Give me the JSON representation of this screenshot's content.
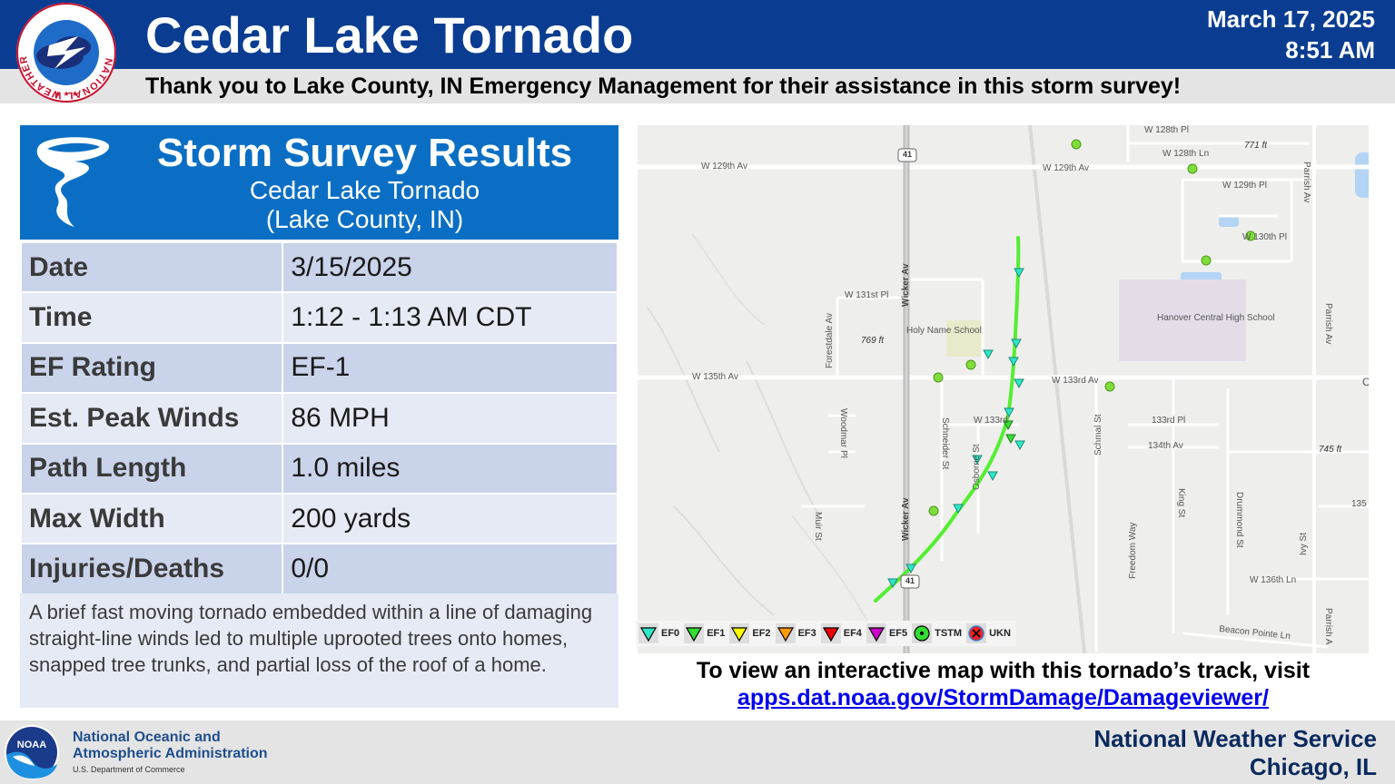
{
  "header": {
    "title": "Cedar Lake Tornado",
    "date": "March 17, 2025",
    "time": "8:51 AM",
    "thanks": "Thank you to Lake County, IN Emergency Management for their assistance in this storm survey!",
    "logo_text": "NATIONAL WEATHER SERVICE"
  },
  "survey": {
    "title": "Storm Survey Results",
    "subtitle_line1": "Cedar Lake Tornado",
    "subtitle_line2": "(Lake County, IN)",
    "rows": [
      {
        "label": "Date",
        "value": "3/15/2025"
      },
      {
        "label": "Time",
        "value": "1:12 - 1:13 AM CDT"
      },
      {
        "label": "EF Rating",
        "value": "EF-1"
      },
      {
        "label": "Est. Peak Winds",
        "value": "86 MPH"
      },
      {
        "label": "Path Length",
        "value": "1.0 miles"
      },
      {
        "label": "Max Width",
        "value": "200 yards"
      },
      {
        "label": "Injuries/Deaths",
        "value": "0/0"
      }
    ],
    "summary": "A brief fast moving tornado embedded within a line of damaging straight-line winds led to multiple uprooted trees onto homes, snapped tree trunks, and partial loss of the roof of a home."
  },
  "map": {
    "labels": {
      "w128th_pl": "W 128th Pl",
      "w128th_ln": "W 128th Ln",
      "elev771": "771 ft",
      "w129th_av_west": "W 129th Av",
      "w129th_av_mid": "W 129th Av",
      "w129th_pl": "W 129th Pl",
      "w130th_pl": "W 130th Pl",
      "parrish_av_n": "Parrish Av",
      "wicker_av_n": "Wicker Av",
      "w131st_pl": "W 131st Pl",
      "forestdale_av": "Forestdale Av",
      "holy_name": "Holy Name School",
      "hanover": "Hanover Central High School",
      "elev769": "769 ft",
      "w135th_av": "W 135th Av",
      "w133rd_av": "W 133rd Av",
      "woodmar_pl": "Woodmar Pl",
      "schneider_st": "Schneider St",
      "w133rd": "W 133rd",
      "osborne_st": "Osborne St",
      "schmal_st": "Schmal St",
      "pl133rd": "133rd Pl",
      "av134th": "134th Av",
      "elev745": "745 ft",
      "parrish_av_e": "Parrish Av",
      "muir_st": "Muir St",
      "wicker_av_s": "Wicker Av",
      "freedom_way": "Freedom Way",
      "king_st": "King St",
      "drummond_st": "Drummond St",
      "ivy_st": "Ivy St",
      "w136th_ln": "W 136th Ln",
      "beacon_pointe_ln": "Beacon Pointe Ln",
      "parrish_a_s": "Parrish A",
      "r135": "135",
      "route41_n": "41",
      "route41_s": "41",
      "edge_c": "C"
    },
    "legend": [
      {
        "label": "EF0",
        "color": "#2ee8c8",
        "shape": "triangle"
      },
      {
        "label": "EF1",
        "color": "#33dd33",
        "shape": "triangle"
      },
      {
        "label": "EF2",
        "color": "#ffff00",
        "shape": "triangle"
      },
      {
        "label": "EF3",
        "color": "#ff9900",
        "shape": "triangle"
      },
      {
        "label": "EF4",
        "color": "#ee0000",
        "shape": "triangle"
      },
      {
        "label": "EF5",
        "color": "#cc00cc",
        "shape": "triangle"
      },
      {
        "label": "TSTM",
        "color": "#33dd33",
        "shape": "dot"
      },
      {
        "label": "UKN",
        "color": "#ee2222",
        "shape": "x"
      }
    ],
    "track_color": "#55ee33"
  },
  "map_note": "To view an interactive map with this tornado’s track, visit",
  "map_link": "apps.dat.noaa.gov/StormDamage/Damageviewer/",
  "footer": {
    "noaa_line1": "National Oceanic and",
    "noaa_line2": "Atmospheric Administration",
    "noaa_dept": "U.S. Department of Commerce",
    "noaa_logo_text": "NOAA",
    "office_line1": "National Weather Service",
    "office_line2": "Chicago, IL"
  }
}
